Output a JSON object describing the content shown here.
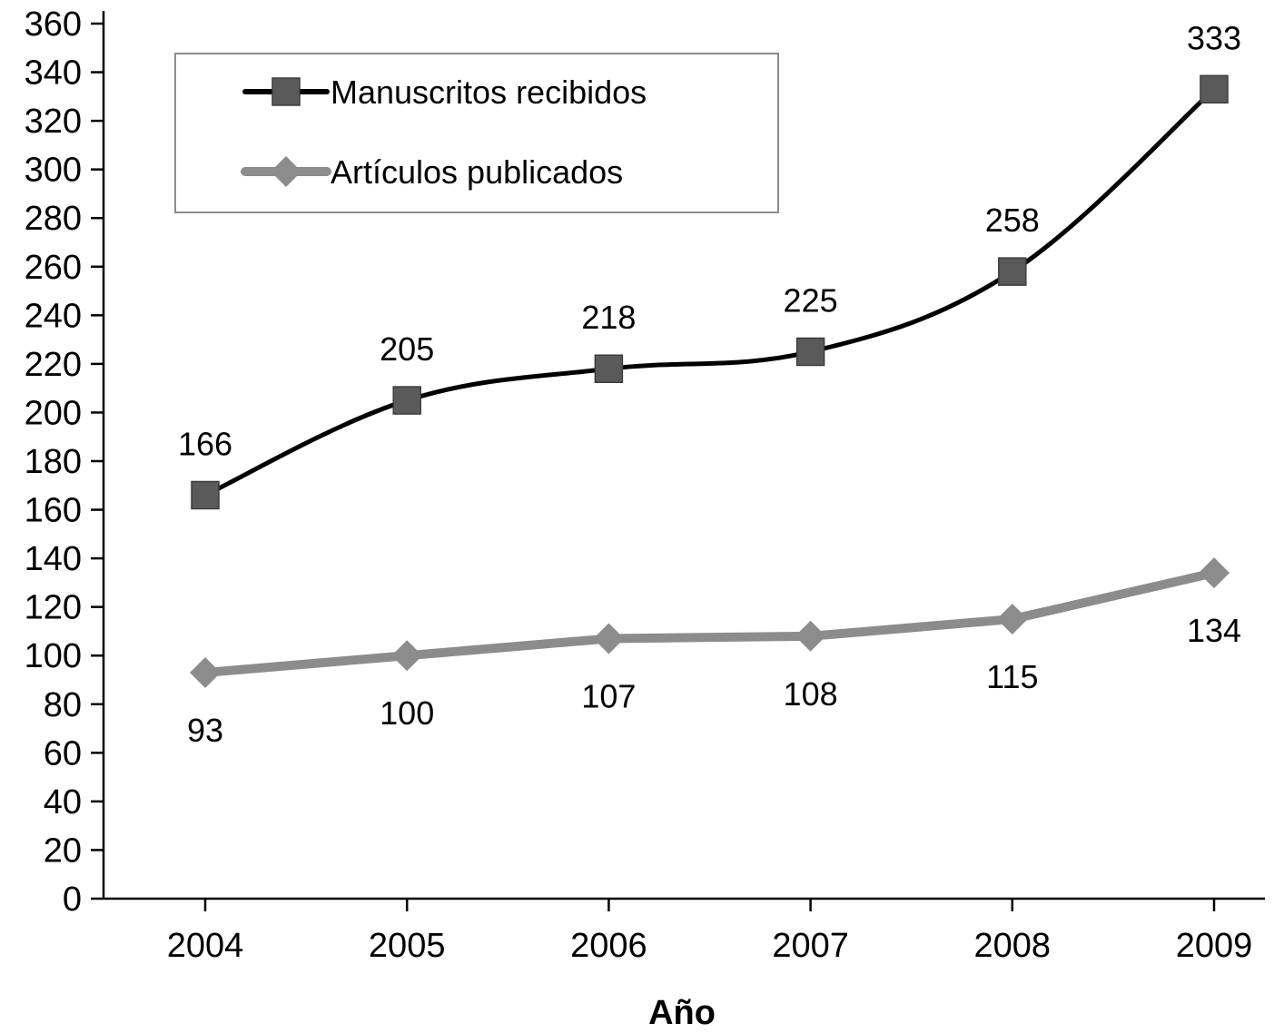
{
  "chart_data": {
    "type": "line",
    "title": "",
    "xlabel": "Año",
    "ylabel": "",
    "ylim": [
      0,
      360
    ],
    "y_tick_step": 20,
    "y_ticks": [
      "0",
      "20",
      "40",
      "60",
      "80",
      "100",
      "120",
      "140",
      "160",
      "180",
      "200",
      "220",
      "240",
      "260",
      "280",
      "300",
      "320",
      "340",
      "360"
    ],
    "categories": [
      "2004",
      "2005",
      "2006",
      "2007",
      "2008",
      "2009"
    ],
    "legend_position": "top-left",
    "grid": false,
    "series": [
      {
        "name": "Manuscritos recibidos",
        "values": [
          166,
          205,
          218,
          225,
          258,
          333
        ],
        "color": "#000000",
        "marker": "square",
        "marker_color": "#5a5a5a",
        "smooth": true,
        "label_position": "above",
        "labels": [
          "166",
          "205",
          "218",
          "225",
          "258",
          "333"
        ]
      },
      {
        "name": "Artículos publicados",
        "values": [
          93,
          100,
          107,
          108,
          115,
          134
        ],
        "color": "#8c8c8c",
        "marker": "diamond",
        "marker_color": "#8c8c8c",
        "smooth": false,
        "label_position": "below",
        "labels": [
          "93",
          "100",
          "107",
          "108",
          "115",
          "134"
        ]
      }
    ]
  }
}
